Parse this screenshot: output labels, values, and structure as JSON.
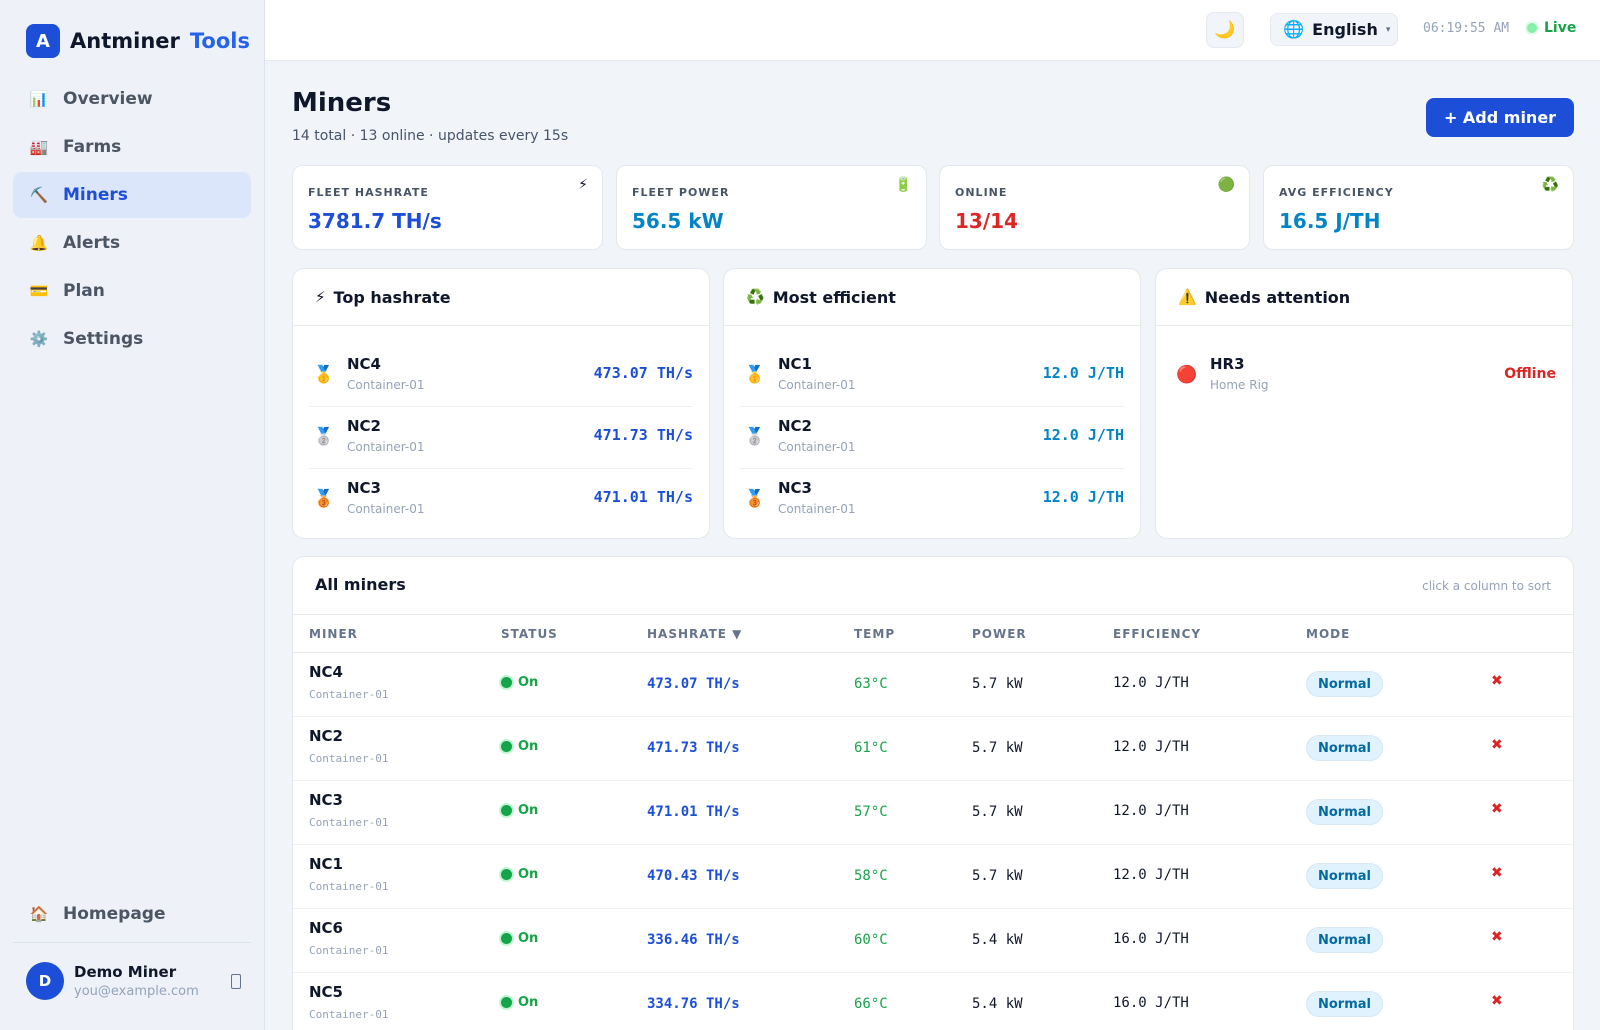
{
  "brand": {
    "logo_letter": "A",
    "name": "Antminer",
    "accent": "Tools"
  },
  "nav": {
    "items": [
      {
        "icon": "📊",
        "icon_name": "chart-icon",
        "label": "Overview",
        "active": false
      },
      {
        "icon": "🏭",
        "icon_name": "factory-icon",
        "label": "Farms",
        "active": false
      },
      {
        "icon": "⛏️",
        "icon_name": "pickaxe-icon",
        "label": "Miners",
        "active": true
      },
      {
        "icon": "🔔",
        "icon_name": "bell-icon",
        "label": "Alerts",
        "active": false
      },
      {
        "icon": "💳",
        "icon_name": "credit-card-icon",
        "label": "Plan",
        "active": false
      },
      {
        "icon": "⚙️",
        "icon_name": "gear-icon",
        "label": "Settings",
        "active": false
      }
    ],
    "homepage": {
      "icon": "🏠",
      "icon_name": "home-icon",
      "label": "Homepage"
    }
  },
  "user": {
    "initial": "D",
    "name": "Demo Miner",
    "email": "you@example.com"
  },
  "header": {
    "theme_icon": "🌙",
    "language": {
      "icon": "🌐",
      "label": "English",
      "caret": "▾"
    },
    "clock": "06:19:55 AM",
    "live_label": "Live"
  },
  "page": {
    "title": "Miners",
    "subtitle": "14 total · 13 online · updates every 15s",
    "add_button": "+ Add miner"
  },
  "stats": [
    {
      "label": "FLEET HASHRATE",
      "value": "3781.7 TH/s",
      "icon": "⚡",
      "icon_name": "lightning-icon",
      "color": "#1d4ed8"
    },
    {
      "label": "FLEET POWER",
      "value": "56.5 kW",
      "icon": "🔋",
      "icon_name": "battery-icon",
      "color": "#0284c7"
    },
    {
      "label": "ONLINE",
      "value": "13/14",
      "icon": "🟢",
      "icon_name": "green-circle-icon",
      "color": "#dc2626"
    },
    {
      "label": "AVG EFFICIENCY",
      "value": "16.5 J/TH",
      "icon": "♻️",
      "icon_name": "recycle-icon",
      "color": "#0284c7"
    }
  ],
  "boards": [
    {
      "icon": "⚡",
      "icon_name": "lightning-icon",
      "title": "Top hashrate",
      "value_color": "#1d4ed8",
      "rows": [
        {
          "medal": "🥇",
          "medal_name": "gold-medal-icon",
          "name": "NC4",
          "sub": "Container-01",
          "value": "473.07 TH/s"
        },
        {
          "medal": "🥈",
          "medal_name": "silver-medal-icon",
          "name": "NC2",
          "sub": "Container-01",
          "value": "471.73 TH/s"
        },
        {
          "medal": "🥉",
          "medal_name": "bronze-medal-icon",
          "name": "NC3",
          "sub": "Container-01",
          "value": "471.01 TH/s"
        }
      ]
    },
    {
      "icon": "♻️",
      "icon_name": "recycle-icon",
      "title": "Most efficient",
      "value_color": "#0284c7",
      "rows": [
        {
          "medal": "🥇",
          "medal_name": "gold-medal-icon",
          "name": "NC1",
          "sub": "Container-01",
          "value": "12.0 J/TH"
        },
        {
          "medal": "🥈",
          "medal_name": "silver-medal-icon",
          "name": "NC2",
          "sub": "Container-01",
          "value": "12.0 J/TH"
        },
        {
          "medal": "🥉",
          "medal_name": "bronze-medal-icon",
          "name": "NC3",
          "sub": "Container-01",
          "value": "12.0 J/TH"
        }
      ]
    },
    {
      "icon": "⚠️",
      "icon_name": "warning-icon",
      "title": "Needs attention",
      "value_color": "#dc2626",
      "rows": [
        {
          "medal": "🔴",
          "medal_name": "red-circle-icon",
          "name": "HR3",
          "sub": "Home Rig",
          "value": "Offline"
        }
      ]
    }
  ],
  "table": {
    "title": "All miners",
    "hint": "click a column to sort",
    "columns": [
      "MINER",
      "STATUS",
      "HASHRATE ▼",
      "TEMP",
      "POWER",
      "EFFICIENCY",
      "MODE"
    ],
    "rows": [
      {
        "name": "NC4",
        "farm": "Container-01",
        "status": "On",
        "hashrate": "473.07 TH/s",
        "temp": "63°C",
        "power": "5.7 kW",
        "efficiency": "12.0 J/TH",
        "mode": "Normal",
        "delete": "✖"
      },
      {
        "name": "NC2",
        "farm": "Container-01",
        "status": "On",
        "hashrate": "471.73 TH/s",
        "temp": "61°C",
        "power": "5.7 kW",
        "efficiency": "12.0 J/TH",
        "mode": "Normal",
        "delete": "✖"
      },
      {
        "name": "NC3",
        "farm": "Container-01",
        "status": "On",
        "hashrate": "471.01 TH/s",
        "temp": "57°C",
        "power": "5.7 kW",
        "efficiency": "12.0 J/TH",
        "mode": "Normal",
        "delete": "✖"
      },
      {
        "name": "NC1",
        "farm": "Container-01",
        "status": "On",
        "hashrate": "470.43 TH/s",
        "temp": "58°C",
        "power": "5.7 kW",
        "efficiency": "12.0 J/TH",
        "mode": "Normal",
        "delete": "✖"
      },
      {
        "name": "NC6",
        "farm": "Container-01",
        "status": "On",
        "hashrate": "336.46 TH/s",
        "temp": "60°C",
        "power": "5.4 kW",
        "efficiency": "16.0 J/TH",
        "mode": "Normal",
        "delete": "✖"
      },
      {
        "name": "NC5",
        "farm": "Container-01",
        "status": "On",
        "hashrate": "334.76 TH/s",
        "temp": "66°C",
        "power": "5.4 kW",
        "efficiency": "16.0 J/TH",
        "mode": "Normal",
        "delete": "✖"
      }
    ]
  }
}
